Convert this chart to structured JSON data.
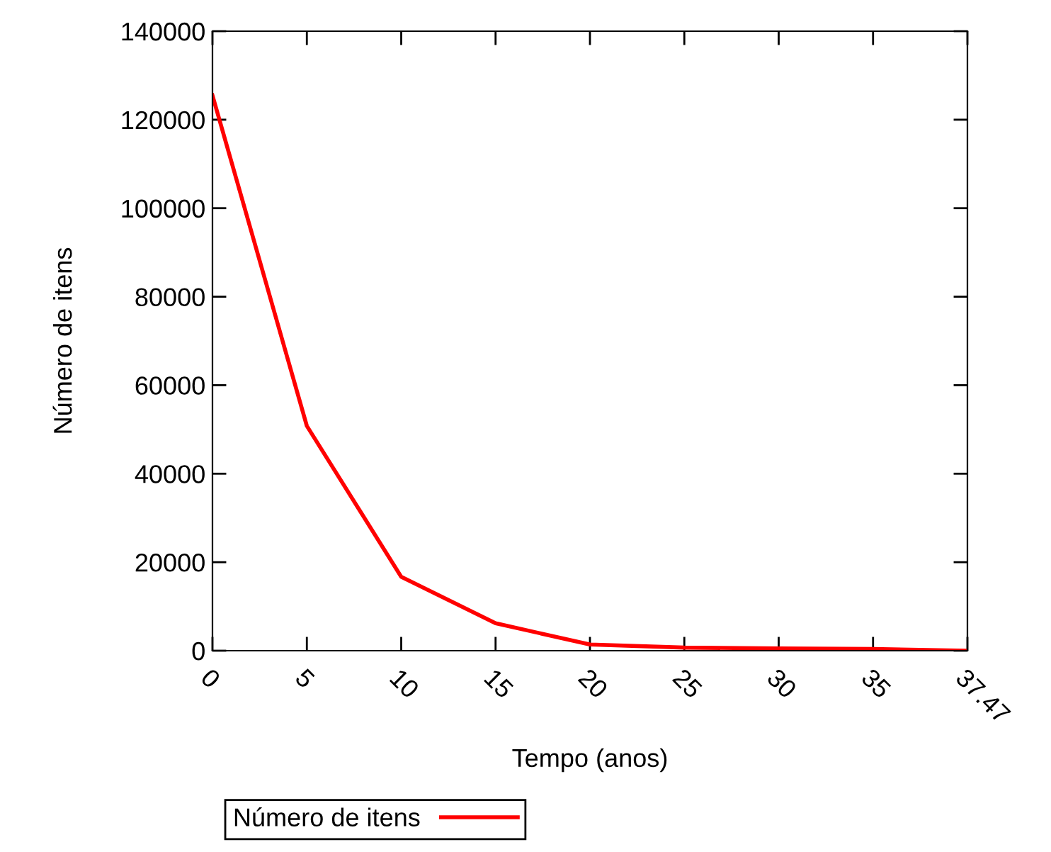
{
  "chart_data": {
    "type": "line",
    "xlabel": "Tempo (anos)",
    "ylabel": "Número de itens",
    "categories": [
      "0",
      "5",
      "10",
      "15",
      "20",
      "25",
      "30",
      "35",
      "37.47"
    ],
    "series": [
      {
        "name": "Número de itens",
        "color": "#ff0000",
        "values": [
          125500,
          50800,
          16700,
          6200,
          1400,
          700,
          500,
          400,
          0
        ]
      }
    ],
    "ylim": [
      0,
      140000
    ],
    "yticks": [
      0,
      20000,
      40000,
      60000,
      80000,
      100000,
      120000,
      140000
    ],
    "grid": false,
    "legend": "bottom left",
    "marker": "none",
    "line_style": "solid"
  }
}
